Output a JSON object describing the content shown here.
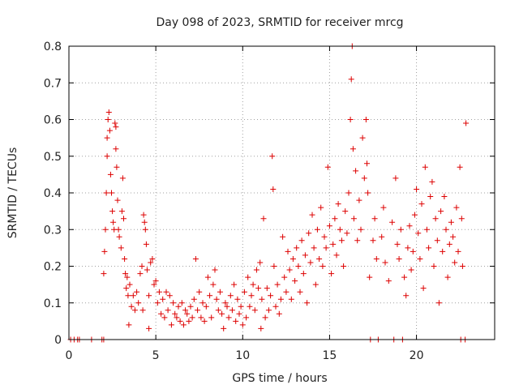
{
  "chart_data": {
    "type": "scatter",
    "title": "Day 098 of 2023, SRMTID for receiver mrcg",
    "xlabel": "GPS time / hours",
    "ylabel": "SRMTID / TECUs",
    "xlim": [
      0,
      24.5
    ],
    "ylim": [
      0,
      0.8
    ],
    "xticks": [
      0,
      5,
      10,
      15,
      20
    ],
    "yticks": [
      0,
      0.1,
      0.2,
      0.3,
      0.4,
      0.5,
      0.6,
      0.7,
      0.8
    ],
    "grid": true,
    "legend": "none",
    "marker": "+",
    "marker_color": "#dd0000",
    "grid_color": "#a0a0a0",
    "series": [
      {
        "name": "SRMTID",
        "points": [
          [
            0.1,
            0
          ],
          [
            0.3,
            0
          ],
          [
            0.5,
            0
          ],
          [
            0.6,
            0
          ],
          [
            1.3,
            0
          ],
          [
            1.9,
            0
          ],
          [
            2.0,
            0
          ],
          [
            2.0,
            0.18
          ],
          [
            2.05,
            0.24
          ],
          [
            2.1,
            0.3
          ],
          [
            2.15,
            0.4
          ],
          [
            2.2,
            0.5
          ],
          [
            2.2,
            0.55
          ],
          [
            2.25,
            0.6
          ],
          [
            2.3,
            0.62
          ],
          [
            2.35,
            0.57
          ],
          [
            2.4,
            0.45
          ],
          [
            2.45,
            0.4
          ],
          [
            2.5,
            0.35
          ],
          [
            2.55,
            0.32
          ],
          [
            2.6,
            0.3
          ],
          [
            2.65,
            0.59
          ],
          [
            2.7,
            0.58
          ],
          [
            2.7,
            0.52
          ],
          [
            2.75,
            0.47
          ],
          [
            2.8,
            0.38
          ],
          [
            2.85,
            0.3
          ],
          [
            2.9,
            0.28
          ],
          [
            3.0,
            0.25
          ],
          [
            3.05,
            0.35
          ],
          [
            3.1,
            0.44
          ],
          [
            3.15,
            0.33
          ],
          [
            3.2,
            0.22
          ],
          [
            3.25,
            0.18
          ],
          [
            3.3,
            0.14
          ],
          [
            3.35,
            0.17
          ],
          [
            3.4,
            0.12
          ],
          [
            3.5,
            0.15
          ],
          [
            3.6,
            0.09
          ],
          [
            3.7,
            0.12
          ],
          [
            3.8,
            0.08
          ],
          [
            3.9,
            0.13
          ],
          [
            4.0,
            0.1
          ],
          [
            4.1,
            0.18
          ],
          [
            4.2,
            0.2
          ],
          [
            4.3,
            0.34
          ],
          [
            4.35,
            0.32
          ],
          [
            4.4,
            0.3
          ],
          [
            4.45,
            0.26
          ],
          [
            4.5,
            0.19
          ],
          [
            4.6,
            0.12
          ],
          [
            4.7,
            0.21
          ],
          [
            4.8,
            0.22
          ],
          [
            4.9,
            0.15
          ],
          [
            3.45,
            0.04
          ],
          [
            4.25,
            0.08
          ],
          [
            4.6,
            0.03
          ],
          [
            5.0,
            0.16
          ],
          [
            5.1,
            0.1
          ],
          [
            5.2,
            0.13
          ],
          [
            5.3,
            0.07
          ],
          [
            5.4,
            0.11
          ],
          [
            5.5,
            0.06
          ],
          [
            5.6,
            0.13
          ],
          [
            5.7,
            0.08
          ],
          [
            5.8,
            0.12
          ],
          [
            5.9,
            0.04
          ],
          [
            6.0,
            0.1
          ],
          [
            6.1,
            0.07
          ],
          [
            6.2,
            0.06
          ],
          [
            6.3,
            0.09
          ],
          [
            6.4,
            0.05
          ],
          [
            6.5,
            0.1
          ],
          [
            6.6,
            0.04
          ],
          [
            6.7,
            0.08
          ],
          [
            6.8,
            0.07
          ],
          [
            6.9,
            0.05
          ],
          [
            7.0,
            0.09
          ],
          [
            7.1,
            0.06
          ],
          [
            7.2,
            0.11
          ],
          [
            7.3,
            0.22
          ],
          [
            7.4,
            0.08
          ],
          [
            7.5,
            0.13
          ],
          [
            7.6,
            0.06
          ],
          [
            7.7,
            0.1
          ],
          [
            7.8,
            0.05
          ],
          [
            7.9,
            0.09
          ],
          [
            8.0,
            0.17
          ],
          [
            8.1,
            0.12
          ],
          [
            8.2,
            0.06
          ],
          [
            8.3,
            0.15
          ],
          [
            8.4,
            0.19
          ],
          [
            8.5,
            0.11
          ],
          [
            8.6,
            0.08
          ],
          [
            8.7,
            0.13
          ],
          [
            8.8,
            0.07
          ],
          [
            8.9,
            0.03
          ],
          [
            9.0,
            0.1
          ],
          [
            9.1,
            0.09
          ],
          [
            9.2,
            0.06
          ],
          [
            9.3,
            0.12
          ],
          [
            9.4,
            0.08
          ],
          [
            9.5,
            0.15
          ],
          [
            9.6,
            0.05
          ],
          [
            9.7,
            0.11
          ],
          [
            9.8,
            0.07
          ],
          [
            9.9,
            0.09
          ],
          [
            10.0,
            0.04
          ],
          [
            10.1,
            0.13
          ],
          [
            10.2,
            0.06
          ],
          [
            10.3,
            0.17
          ],
          [
            10.4,
            0.09
          ],
          [
            10.5,
            0.12
          ],
          [
            10.6,
            0.15
          ],
          [
            10.7,
            0.08
          ],
          [
            10.8,
            0.19
          ],
          [
            10.9,
            0.14
          ],
          [
            11.0,
            0.21
          ],
          [
            11.05,
            0.03
          ],
          [
            11.1,
            0.11
          ],
          [
            11.2,
            0.33
          ],
          [
            11.3,
            0.06
          ],
          [
            11.4,
            0.14
          ],
          [
            11.5,
            0.08
          ],
          [
            11.6,
            0.12
          ],
          [
            11.7,
            0.5
          ],
          [
            11.75,
            0.41
          ],
          [
            11.8,
            0.2
          ],
          [
            11.9,
            0.09
          ],
          [
            12.0,
            0.15
          ],
          [
            12.1,
            0.07
          ],
          [
            12.2,
            0.11
          ],
          [
            12.3,
            0.28
          ],
          [
            12.4,
            0.17
          ],
          [
            12.5,
            0.13
          ],
          [
            12.6,
            0.24
          ],
          [
            12.7,
            0.19
          ],
          [
            12.8,
            0.11
          ],
          [
            12.9,
            0.22
          ],
          [
            13.0,
            0.16
          ],
          [
            13.1,
            0.25
          ],
          [
            13.2,
            0.2
          ],
          [
            13.3,
            0.13
          ],
          [
            13.4,
            0.27
          ],
          [
            13.5,
            0.18
          ],
          [
            13.6,
            0.23
          ],
          [
            13.7,
            0.1
          ],
          [
            13.8,
            0.29
          ],
          [
            13.9,
            0.21
          ],
          [
            14.0,
            0.34
          ],
          [
            14.1,
            0.25
          ],
          [
            14.2,
            0.15
          ],
          [
            14.3,
            0.3
          ],
          [
            14.4,
            0.22
          ],
          [
            14.5,
            0.36
          ],
          [
            14.6,
            0.2
          ],
          [
            14.7,
            0.28
          ],
          [
            14.8,
            0.25
          ],
          [
            14.9,
            0.47
          ],
          [
            15.0,
            0.31
          ],
          [
            15.1,
            0.18
          ],
          [
            15.2,
            0.26
          ],
          [
            15.3,
            0.33
          ],
          [
            15.4,
            0.23
          ],
          [
            15.5,
            0.37
          ],
          [
            15.6,
            0.3
          ],
          [
            15.7,
            0.27
          ],
          [
            15.8,
            0.2
          ],
          [
            15.9,
            0.35
          ],
          [
            16.0,
            0.29
          ],
          [
            16.1,
            0.4
          ],
          [
            16.2,
            0.6
          ],
          [
            16.25,
            0.71
          ],
          [
            16.3,
            0.8
          ],
          [
            16.35,
            0.52
          ],
          [
            16.4,
            0.33
          ],
          [
            16.5,
            0.46
          ],
          [
            16.6,
            0.27
          ],
          [
            16.7,
            0.38
          ],
          [
            16.8,
            0.3
          ],
          [
            16.9,
            0.55
          ],
          [
            17.0,
            0.44
          ],
          [
            17.1,
            0.6
          ],
          [
            17.15,
            0.48
          ],
          [
            17.2,
            0.4
          ],
          [
            17.3,
            0.17
          ],
          [
            17.35,
            0
          ],
          [
            17.5,
            0.27
          ],
          [
            17.6,
            0.33
          ],
          [
            17.7,
            0.22
          ],
          [
            17.8,
            0
          ],
          [
            18.0,
            0.28
          ],
          [
            18.1,
            0.36
          ],
          [
            18.2,
            0.21
          ],
          [
            18.4,
            0.16
          ],
          [
            18.6,
            0.32
          ],
          [
            18.7,
            0
          ],
          [
            18.8,
            0.44
          ],
          [
            18.9,
            0.26
          ],
          [
            19.0,
            0.22
          ],
          [
            19.1,
            0.3
          ],
          [
            19.2,
            0
          ],
          [
            19.3,
            0.17
          ],
          [
            19.4,
            0.12
          ],
          [
            19.5,
            0.25
          ],
          [
            19.6,
            0.31
          ],
          [
            19.7,
            0.19
          ],
          [
            19.8,
            0.24
          ],
          [
            19.9,
            0.34
          ],
          [
            20.0,
            0.41
          ],
          [
            20.1,
            0.29
          ],
          [
            20.2,
            0.22
          ],
          [
            20.3,
            0.37
          ],
          [
            20.4,
            0.14
          ],
          [
            20.5,
            0.47
          ],
          [
            20.6,
            0.3
          ],
          [
            20.7,
            0.25
          ],
          [
            20.8,
            0.39
          ],
          [
            20.9,
            0.43
          ],
          [
            21.0,
            0.2
          ],
          [
            21.1,
            0.33
          ],
          [
            21.2,
            0.27
          ],
          [
            21.3,
            0.1
          ],
          [
            21.4,
            0.35
          ],
          [
            21.5,
            0.24
          ],
          [
            21.6,
            0.39
          ],
          [
            21.7,
            0.3
          ],
          [
            21.8,
            0.17
          ],
          [
            21.9,
            0.26
          ],
          [
            22.0,
            0.32
          ],
          [
            22.1,
            0.28
          ],
          [
            22.2,
            0.21
          ],
          [
            22.3,
            0.36
          ],
          [
            22.4,
            0.24
          ],
          [
            22.5,
            0.47
          ],
          [
            22.55,
            0
          ],
          [
            22.6,
            0.33
          ],
          [
            22.65,
            0.2
          ],
          [
            22.8,
            0.0
          ],
          [
            22.85,
            0.59
          ]
        ]
      }
    ]
  }
}
